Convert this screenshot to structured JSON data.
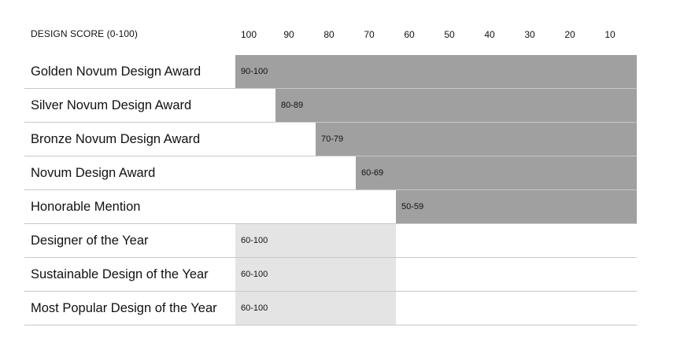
{
  "chart_data": {
    "type": "bar",
    "orientation": "horizontal",
    "header_label": "DESIGN SCORE (0-100)",
    "axis_ticks": [
      "100",
      "90",
      "80",
      "70",
      "60",
      "50",
      "40",
      "30",
      "20",
      "10"
    ],
    "axis_direction": "descending",
    "xlim": [
      110,
      0
    ],
    "grid": false,
    "colors": {
      "score_award": "#a0a0a0",
      "special_award": "#e4e4e4",
      "row_divider": "#c8c8c8"
    },
    "rows": [
      {
        "category": "Golden Novum Design Award",
        "range_label": "90-100",
        "start": 100,
        "style": "score_award"
      },
      {
        "category": "Silver Novum Design Award",
        "range_label": "80-89",
        "start": 90,
        "style": "score_award"
      },
      {
        "category": "Bronze Novum Design Award",
        "range_label": "70-79",
        "start": 80,
        "style": "score_award"
      },
      {
        "category": "Novum Design Award",
        "range_label": "60-69",
        "start": 70,
        "style": "score_award"
      },
      {
        "category": "Honorable Mention",
        "range_label": "50-59",
        "start": 60,
        "style": "score_award"
      },
      {
        "category": "Designer of the Year",
        "range_label": "60-100",
        "start": 100,
        "end": 60,
        "style": "special_award"
      },
      {
        "category": "Sustainable Design of the Year",
        "range_label": "60-100",
        "start": 100,
        "end": 60,
        "style": "special_award"
      },
      {
        "category": "Most Popular Design of the Year",
        "range_label": "60-100",
        "start": 100,
        "end": 60,
        "style": "special_award"
      }
    ]
  }
}
